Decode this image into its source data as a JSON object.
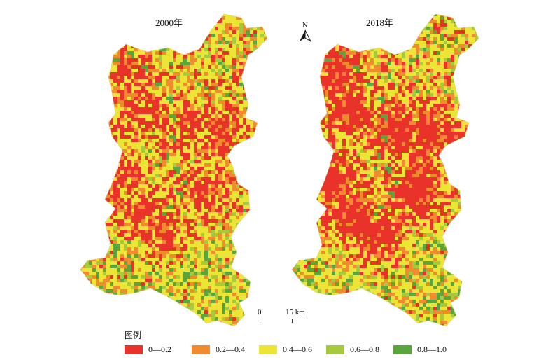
{
  "maps": [
    {
      "title": "2000年",
      "red_level": 0.55
    },
    {
      "title": "2018年",
      "red_level": 0.78
    }
  ],
  "north_label": "N",
  "scale": {
    "zero": "0",
    "end": "15 km"
  },
  "legend": {
    "title": "图例",
    "items": [
      {
        "label": "0—0.2",
        "color": "#e8322a"
      },
      {
        "label": "0.2—0.4",
        "color": "#f08c2e"
      },
      {
        "label": "0.4—0.6",
        "color": "#ede535"
      },
      {
        "label": "0.6—0.8",
        "color": "#a5cb3c"
      },
      {
        "label": "0.8—1.0",
        "color": "#5aa63c"
      }
    ]
  }
}
